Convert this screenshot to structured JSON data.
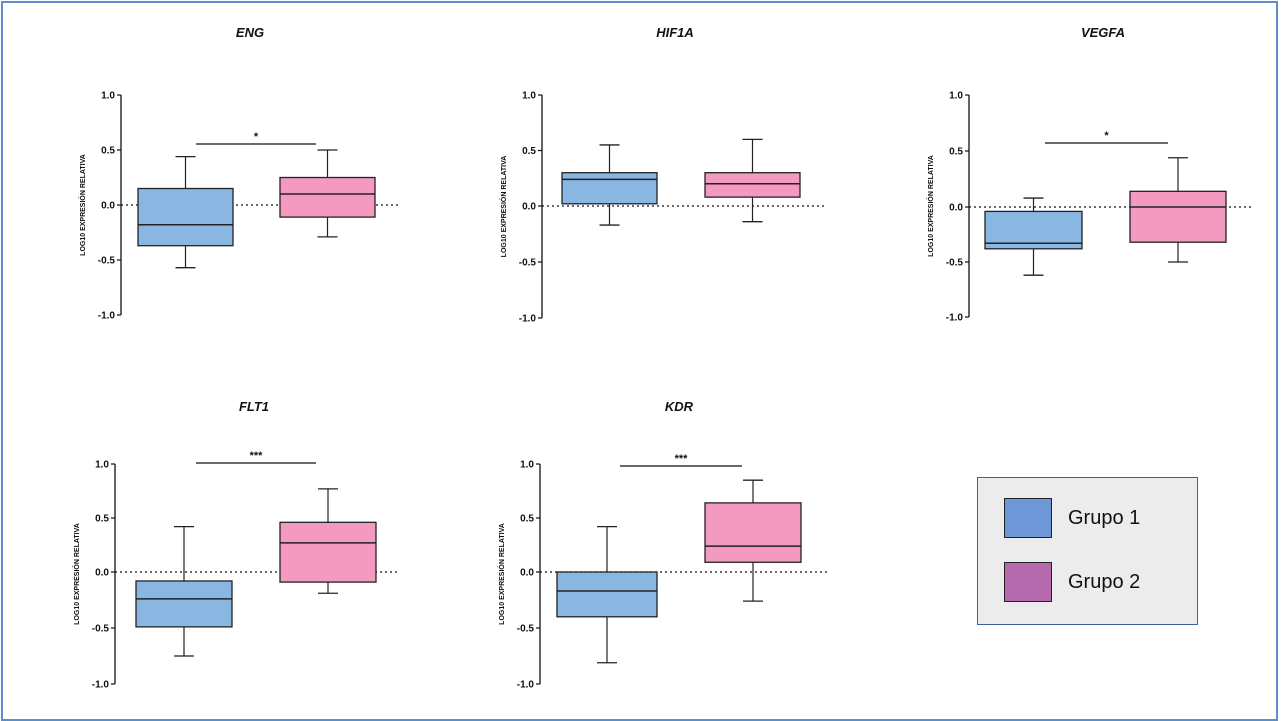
{
  "colors": {
    "group1": "#8ab6e2",
    "group2": "#f49ac1",
    "legend_group1": "#6d97d6",
    "legend_group2": "#b46aac"
  },
  "legend": {
    "items": [
      {
        "label": "Grupo 1"
      },
      {
        "label": "Grupo 2"
      }
    ]
  },
  "chart_data": [
    {
      "type": "box",
      "title": "ENG",
      "ylabel": "LOG10 EXPRESIÓN RELATIVA",
      "ylim": [
        -1.0,
        1.0
      ],
      "yticks": [
        "1.0",
        "0.5",
        "0.0",
        "-0.5",
        "-1.0"
      ],
      "reference_line": 0,
      "groups": [
        {
          "name": "Grupo 1",
          "min": -0.57,
          "q1": -0.37,
          "median": -0.18,
          "q3": 0.15,
          "max": 0.44
        },
        {
          "name": "Grupo 2",
          "min": -0.29,
          "q1": -0.11,
          "median": 0.1,
          "q3": 0.25,
          "max": 0.5
        }
      ],
      "significance": "*"
    },
    {
      "type": "box",
      "title": "HIF1A",
      "ylabel": "LOG10 EXPRESIÓN RELATIVA",
      "ylim": [
        -1.0,
        1.0
      ],
      "yticks": [
        "1.0",
        "0.5",
        "0.0",
        "-0.5",
        "-1.0"
      ],
      "reference_line": 0,
      "groups": [
        {
          "name": "Grupo 1",
          "min": -0.17,
          "q1": 0.02,
          "median": 0.24,
          "q3": 0.3,
          "max": 0.55
        },
        {
          "name": "Grupo 2",
          "min": -0.14,
          "q1": 0.08,
          "median": 0.2,
          "q3": 0.3,
          "max": 0.6
        }
      ],
      "significance": ""
    },
    {
      "type": "box",
      "title": "VEGFA",
      "ylabel": "LOG10 EXPRESIÓN RELATIVA",
      "ylim": [
        -1.0,
        1.0
      ],
      "yticks": [
        "1.0",
        "0.5",
        "0.0",
        "-0.5",
        "-1.0"
      ],
      "reference_line": 0,
      "groups": [
        {
          "name": "Grupo 1",
          "min": -0.62,
          "q1": -0.38,
          "median": -0.33,
          "q3": -0.04,
          "max": 0.08
        },
        {
          "name": "Grupo 2",
          "min": -0.5,
          "q1": -0.32,
          "median": 0.0,
          "q3": 0.14,
          "max": 0.44
        }
      ],
      "significance": "*"
    },
    {
      "type": "box",
      "title": "FLT1",
      "ylabel": "LOG10 EXPRESIÓN RELATIVA",
      "ylim": [
        -1.0,
        1.0
      ],
      "yticks": [
        "1.0",
        "0.5",
        "0.0",
        "-0.5",
        "-1.0"
      ],
      "reference_line": 0,
      "groups": [
        {
          "name": "Grupo 1",
          "min": -0.75,
          "q1": -0.49,
          "median": -0.24,
          "q3": -0.08,
          "max": 0.42
        },
        {
          "name": "Grupo 2",
          "min": -0.19,
          "q1": -0.09,
          "median": 0.27,
          "q3": 0.46,
          "max": 0.77
        }
      ],
      "significance": "***"
    },
    {
      "type": "box",
      "title": "KDR",
      "ylabel": "LOG10 EXPRESIÓN RELATIVA",
      "ylim": [
        -1.0,
        1.0
      ],
      "yticks": [
        "1.0",
        "0.5",
        "0.0",
        "-0.5",
        "-1.0"
      ],
      "reference_line": 0,
      "groups": [
        {
          "name": "Grupo 1",
          "min": -0.81,
          "q1": -0.4,
          "median": -0.17,
          "q3": 0.0,
          "max": 0.42
        },
        {
          "name": "Grupo 2",
          "min": -0.26,
          "q1": 0.09,
          "median": 0.24,
          "q3": 0.64,
          "max": 0.85
        }
      ],
      "significance": "***"
    }
  ]
}
